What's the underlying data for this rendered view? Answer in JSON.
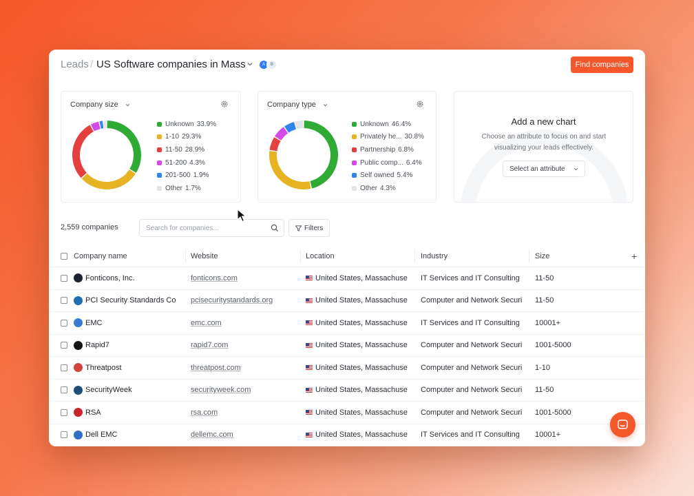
{
  "header": {
    "crumb_root": "Leads",
    "crumb_sep": "/",
    "title": "US Software companies in Mass",
    "find_button": "Find companies",
    "avatar_a": "A",
    "avatar_b": "B"
  },
  "charts": {
    "company_size": {
      "title": "Company size",
      "legend": [
        {
          "label": "Unknown",
          "pct": "33.9%",
          "value": 33.9,
          "color": "#2eaa35"
        },
        {
          "label": "1-10",
          "pct": "29.3%",
          "value": 29.3,
          "color": "#e6b322"
        },
        {
          "label": "11-50",
          "pct": "28.9%",
          "value": 28.9,
          "color": "#e4403f"
        },
        {
          "label": "51-200",
          "pct": "4.3%",
          "value": 4.3,
          "color": "#d54ae6"
        },
        {
          "label": "201-500",
          "pct": "1.9%",
          "value": 1.9,
          "color": "#2f86ea"
        },
        {
          "label": "Other",
          "pct": "1.7%",
          "value": 1.7,
          "color": "#e2e4e7"
        }
      ]
    },
    "company_type": {
      "title": "Company type",
      "legend": [
        {
          "label": "Unknown",
          "pct": "46.4%",
          "value": 46.4,
          "color": "#2eaa35"
        },
        {
          "label": "Privately he...",
          "pct": "30.8%",
          "value": 30.8,
          "color": "#e6b322"
        },
        {
          "label": "Partnership",
          "pct": "6.8%",
          "value": 6.8,
          "color": "#e4403f"
        },
        {
          "label": "Public comp...",
          "pct": "6.4%",
          "value": 6.4,
          "color": "#d54ae6"
        },
        {
          "label": "Self owned",
          "pct": "5.4%",
          "value": 5.4,
          "color": "#2f86ea"
        },
        {
          "label": "Other",
          "pct": "4.3%",
          "value": 4.3,
          "color": "#e2e4e7"
        }
      ]
    },
    "add_chart": {
      "title": "Add a new chart",
      "description": "Choose an attribute to focus on and start visualizing your leads effectively.",
      "select_label": "Select an attribute"
    }
  },
  "toolbar": {
    "count": "2,559 companies",
    "search_placeholder": "Search for companies...",
    "filters_label": "Filters"
  },
  "table": {
    "headers": {
      "name": "Company name",
      "website": "Website",
      "location": "Location",
      "industry": "Industry",
      "size": "Size",
      "add": "+"
    },
    "rows": [
      {
        "name": "Fonticons, Inc.",
        "website": "fonticons.com",
        "location": "United States, Massachuse",
        "industry": "IT Services and IT Consulting",
        "size": "11-50",
        "logo_color": "#1c2230"
      },
      {
        "name": "PCI Security Standards Co",
        "website": "pcisecuritystandards.org",
        "location": "United States, Massachuse",
        "industry": "Computer and Network Securi",
        "size": "11-50",
        "logo_color": "#1f6fb2"
      },
      {
        "name": "EMC",
        "website": "emc.com",
        "location": "United States, Massachuse",
        "industry": "IT Services and IT Consulting",
        "size": "10001+",
        "logo_color": "#3a7bd5"
      },
      {
        "name": "Rapid7",
        "website": "rapid7.com",
        "location": "United States, Massachuse",
        "industry": "Computer and Network Securi",
        "size": "1001-5000",
        "logo_color": "#141414"
      },
      {
        "name": "Threatpost",
        "website": "threatpost.com",
        "location": "United States, Massachuse",
        "industry": "Computer and Network Securi",
        "size": "1-10",
        "logo_color": "#d2453b"
      },
      {
        "name": "SecurityWeek",
        "website": "securityweek.com",
        "location": "United States, Massachuse",
        "industry": "Computer and Network Securi",
        "size": "11-50",
        "logo_color": "#1b4f7a"
      },
      {
        "name": "RSA",
        "website": "rsa.com",
        "location": "United States, Massachuse",
        "industry": "Computer and Network Securi",
        "size": "1001-5000",
        "logo_color": "#c9262c"
      },
      {
        "name": "Dell EMC",
        "website": "dellemc.com",
        "location": "United States, Massachuse",
        "industry": "IT Services and IT Consulting",
        "size": "10001+",
        "logo_color": "#2f6fc4"
      }
    ]
  }
}
